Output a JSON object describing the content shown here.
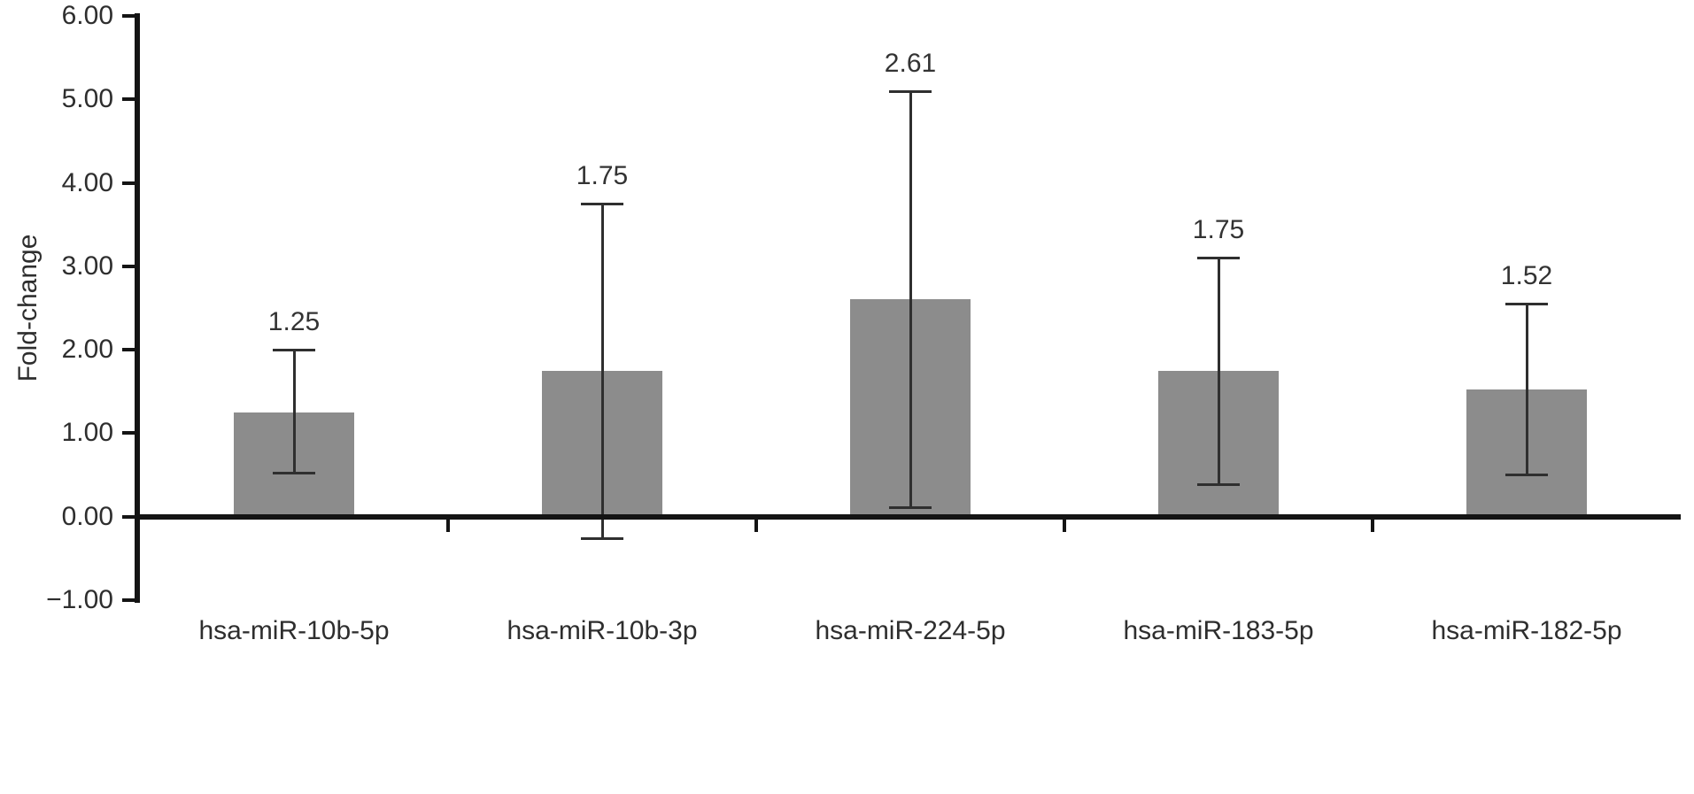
{
  "chart_data": {
    "type": "bar",
    "title": "",
    "xlabel": "",
    "ylabel": "Fold-change",
    "ylim": [
      -1,
      6
    ],
    "grid": false,
    "legend": "none",
    "bar_color": "#8c8c8c",
    "axis_color": "#141414",
    "error_color": "#2f2f2f",
    "yticks": [
      {
        "label": "6.00",
        "value": 6
      },
      {
        "label": "5.00",
        "value": 5
      },
      {
        "label": "4.00",
        "value": 4
      },
      {
        "label": "3.00",
        "value": 3
      },
      {
        "label": "2.00",
        "value": 2
      },
      {
        "label": "1.00",
        "value": 1
      },
      {
        "label": "0.00",
        "value": 0
      },
      {
        "label": "−1.00",
        "value": -1
      }
    ],
    "categories": [
      "hsa-miR-10b-5p",
      "hsa-miR-10b-3p",
      "hsa-miR-224-5p",
      "hsa-miR-183-5p",
      "hsa-miR-182-5p"
    ],
    "values": [
      1.25,
      1.75,
      2.61,
      1.75,
      1.52
    ],
    "value_labels": [
      "1.25",
      "1.75",
      "2.61",
      "1.75",
      "1.52"
    ],
    "error_low": [
      0.52,
      -0.27,
      0.1,
      0.38,
      0.5
    ],
    "error_high": [
      2.0,
      3.75,
      5.1,
      3.1,
      2.55
    ]
  }
}
